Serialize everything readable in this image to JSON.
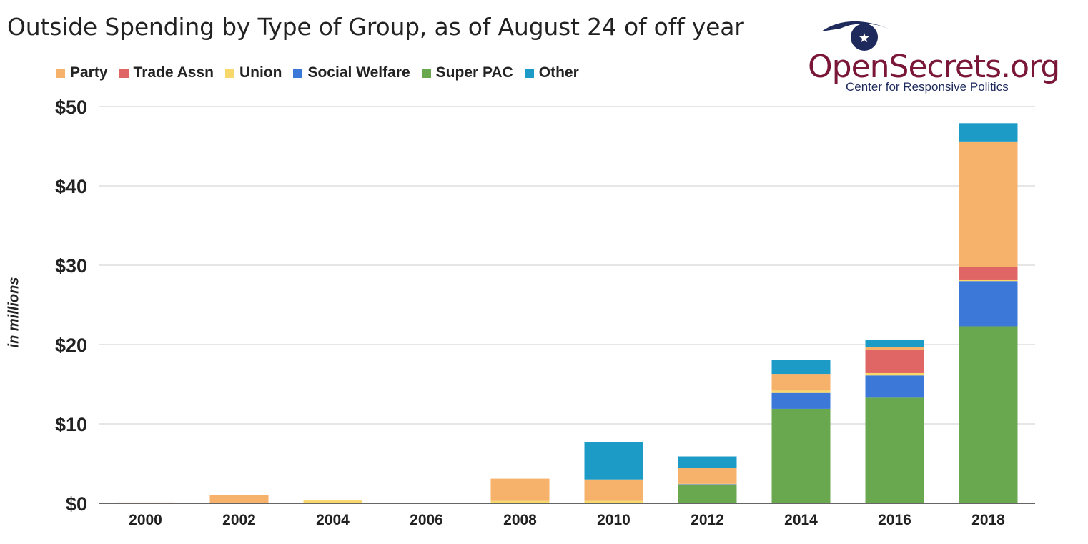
{
  "chart_data": {
    "type": "bar",
    "stacked": true,
    "title": "Outside Spending by Type of Group, as of August 24 of off year",
    "ylabel": "in millions",
    "xlabel": "",
    "ylim": [
      0,
      50
    ],
    "yticks": [
      0,
      10,
      20,
      30,
      40,
      50
    ],
    "ytick_labels": [
      "$0",
      "$10",
      "$20",
      "$30",
      "$40",
      "$50"
    ],
    "grid": true,
    "legend_position": "top-left",
    "categories": [
      "2000",
      "2002",
      "2004",
      "2006",
      "2008",
      "2010",
      "2012",
      "2014",
      "2016",
      "2018"
    ],
    "series": [
      {
        "name": "Super PAC",
        "color": "#6aa84f",
        "values": [
          0,
          0,
          0,
          0,
          0,
          0,
          2.3,
          11.9,
          13.3,
          22.3
        ]
      },
      {
        "name": "Social Welfare",
        "color": "#3c78d8",
        "values": [
          0,
          0,
          0,
          0,
          0,
          0,
          0.1,
          2.0,
          2.8,
          5.7
        ]
      },
      {
        "name": "Union",
        "color": "#f9d86b",
        "values": [
          0,
          0,
          0.35,
          0,
          0.3,
          0.3,
          0.1,
          0.3,
          0.3,
          0.2
        ]
      },
      {
        "name": "Trade Assn",
        "color": "#e06666",
        "values": [
          0,
          0,
          0,
          0,
          0,
          0,
          0.1,
          0,
          2.9,
          1.6
        ]
      },
      {
        "name": "Party",
        "color": "#f6b26b",
        "values": [
          0.1,
          1.0,
          0.1,
          0,
          2.8,
          2.7,
          1.9,
          2.1,
          0.4,
          15.8
        ]
      },
      {
        "name": "Other",
        "color": "#1c9bc7",
        "values": [
          0,
          0,
          0,
          0,
          0,
          4.7,
          1.4,
          1.8,
          0.9,
          2.3
        ]
      }
    ],
    "legend_order": [
      "Party",
      "Trade Assn",
      "Union",
      "Social Welfare",
      "Super PAC",
      "Other"
    ]
  },
  "logo": {
    "wordmark": "OpenSecrets.org",
    "tagline": "Center for Responsive Politics",
    "star": "★",
    "color": "#7a1637",
    "eye_color": "#1f2a5c"
  }
}
